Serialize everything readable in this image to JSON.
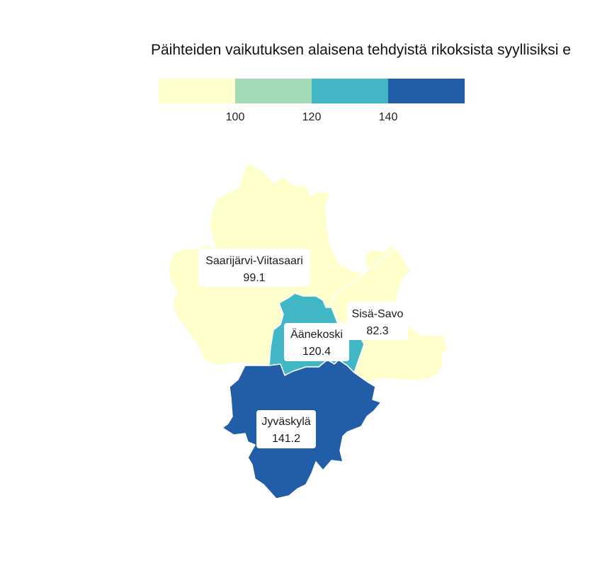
{
  "title": "Päihteiden vaikutuksen alaisena tehdyistä rikoksista syyllisiksi e",
  "legend": {
    "bins": [
      {
        "color": "#ffffcc"
      },
      {
        "color": "#a1dab4"
      },
      {
        "color": "#41b6c4"
      },
      {
        "color": "#225ea8"
      }
    ],
    "ticks": [
      "100",
      "120",
      "140"
    ]
  },
  "regions": [
    {
      "name": "Saarijärvi-Viitasaari",
      "value": "99.1",
      "color": "#ffffcc"
    },
    {
      "name": "Sisä-Savo",
      "value": "82.3",
      "color": "#ffffcc"
    },
    {
      "name": "Äänekoski",
      "value": "120.4",
      "color": "#41b6c4"
    },
    {
      "name": "Jyväskylä",
      "value": "141.2",
      "color": "#225ea8"
    }
  ]
}
